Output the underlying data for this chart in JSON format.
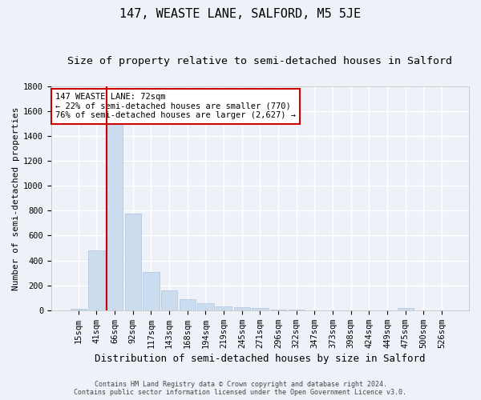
{
  "title": "147, WEASTE LANE, SALFORD, M5 5JE",
  "subtitle": "Size of property relative to semi-detached houses in Salford",
  "xlabel": "Distribution of semi-detached houses by size in Salford",
  "ylabel": "Number of semi-detached properties",
  "footer1": "Contains HM Land Registry data © Crown copyright and database right 2024.",
  "footer2": "Contains public sector information licensed under the Open Government Licence v3.0.",
  "categories": [
    "15sqm",
    "41sqm",
    "66sqm",
    "92sqm",
    "117sqm",
    "143sqm",
    "168sqm",
    "194sqm",
    "219sqm",
    "245sqm",
    "271sqm",
    "296sqm",
    "322sqm",
    "347sqm",
    "373sqm",
    "398sqm",
    "424sqm",
    "449sqm",
    "475sqm",
    "500sqm",
    "526sqm"
  ],
  "values": [
    10,
    480,
    1500,
    775,
    310,
    160,
    90,
    55,
    30,
    25,
    20,
    8,
    3,
    2,
    1,
    1,
    1,
    1,
    15,
    1,
    1
  ],
  "bar_color": "#ccdcef",
  "bar_edge_color": "#adc4e0",
  "red_line_color": "#cc0000",
  "red_line_index": 2,
  "annotation_text": "147 WEASTE LANE: 72sqm\n← 22% of semi-detached houses are smaller (770)\n76% of semi-detached houses are larger (2,627) →",
  "annotation_box_color": "white",
  "annotation_box_edge": "#cc0000",
  "ylim": [
    0,
    1800
  ],
  "yticks": [
    0,
    200,
    400,
    600,
    800,
    1000,
    1200,
    1400,
    1600,
    1800
  ],
  "bg_color": "#eef2f8",
  "grid_color": "white",
  "title_fontsize": 11,
  "subtitle_fontsize": 9.5,
  "xlabel_fontsize": 9,
  "ylabel_fontsize": 8,
  "tick_fontsize": 7.5,
  "footer_fontsize": 6,
  "annot_fontsize": 7.5
}
